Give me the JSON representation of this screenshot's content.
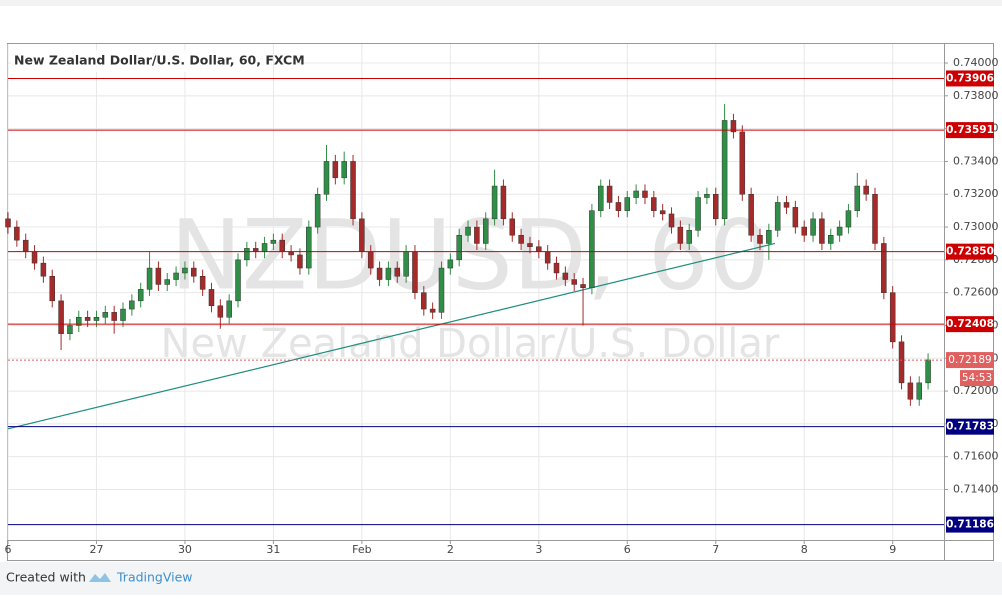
{
  "chart_data": {
    "type": "candlestick",
    "title": "New Zealand Dollar/U.S. Dollar, 60, FXCM",
    "watermark": "NZDUSD, 60",
    "watermark_subtitle": "New Zealand Dollar/U.S. Dollar",
    "up_color": "#2f8f46",
    "down_color": "#a52a2a",
    "open": [
      0.7305,
      0.73,
      0.7292,
      0.7285,
      0.7278,
      0.727,
      0.7255,
      0.7235,
      0.724,
      0.7245,
      0.7243,
      0.7245,
      0.7248,
      0.7243,
      0.725,
      0.7255,
      0.7262,
      0.7275,
      0.7265,
      0.7268,
      0.7272,
      0.7275,
      0.727,
      0.7262,
      0.7252,
      0.7245,
      0.7255,
      0.728,
      0.7287,
      0.7285,
      0.729,
      0.7292,
      0.7285,
      0.7283,
      0.7275,
      0.73,
      0.732,
      0.734,
      0.733,
      0.734,
      0.7305,
      0.7285,
      0.7275,
      0.7268,
      0.7275,
      0.727,
      0.7285,
      0.726,
      0.725,
      0.7248,
      0.7275,
      0.728,
      0.7295,
      0.73,
      0.729,
      0.7305,
      0.7325,
      0.7305,
      0.7295,
      0.729,
      0.7288,
      0.7285,
      0.7278,
      0.7272,
      0.7268,
      0.7265,
      0.7263,
      0.731,
      0.7325,
      0.7315,
      0.731,
      0.7318,
      0.7322,
      0.7318,
      0.731,
      0.7308,
      0.73,
      0.729,
      0.7298,
      0.7318,
      0.732,
      0.7305,
      0.7365,
      0.7358,
      0.732,
      0.7295,
      0.729,
      0.7298,
      0.7315,
      0.7312,
      0.73,
      0.7295,
      0.7305,
      0.729,
      0.7295,
      0.73,
      0.731,
      0.7325,
      0.732,
      0.729,
      0.726,
      0.723,
      0.7205,
      0.7195,
      0.7205
    ],
    "high": [
      0.7309,
      0.7304,
      0.7296,
      0.7289,
      0.7282,
      0.7274,
      0.7259,
      0.7244,
      0.7249,
      0.7249,
      0.7249,
      0.7252,
      0.7252,
      0.7254,
      0.7259,
      0.7266,
      0.7285,
      0.7279,
      0.7272,
      0.7276,
      0.7279,
      0.7279,
      0.7274,
      0.7266,
      0.7256,
      0.7259,
      0.7284,
      0.7291,
      0.7291,
      0.7294,
      0.7296,
      0.7296,
      0.7289,
      0.7287,
      0.7304,
      0.7324,
      0.735,
      0.7344,
      0.7346,
      0.7344,
      0.7309,
      0.7289,
      0.7279,
      0.7279,
      0.7279,
      0.7289,
      0.7289,
      0.7264,
      0.7254,
      0.7279,
      0.7284,
      0.7299,
      0.7304,
      0.7304,
      0.7309,
      0.7335,
      0.7329,
      0.7309,
      0.7299,
      0.7294,
      0.7292,
      0.7289,
      0.7282,
      0.7276,
      0.7272,
      0.7269,
      0.7314,
      0.7329,
      0.7329,
      0.7319,
      0.7322,
      0.7326,
      0.7326,
      0.7322,
      0.7314,
      0.7312,
      0.7304,
      0.7302,
      0.7322,
      0.7324,
      0.7324,
      0.7375,
      0.7369,
      0.7362,
      0.7324,
      0.7299,
      0.7302,
      0.7319,
      0.7319,
      0.7316,
      0.7304,
      0.7309,
      0.7309,
      0.7299,
      0.7304,
      0.7314,
      0.7333,
      0.7329,
      0.7324,
      0.7294,
      0.7264,
      0.7234,
      0.7209,
      0.7209,
      0.7223
    ],
    "low": [
      0.7296,
      0.7288,
      0.7281,
      0.7274,
      0.7266,
      0.7251,
      0.7225,
      0.7231,
      0.7236,
      0.7239,
      0.7239,
      0.7241,
      0.7235,
      0.7239,
      0.7246,
      0.7251,
      0.7258,
      0.7261,
      0.7261,
      0.7264,
      0.7268,
      0.7266,
      0.7258,
      0.7248,
      0.7238,
      0.7241,
      0.7251,
      0.7276,
      0.7281,
      0.7281,
      0.7286,
      0.7281,
      0.7279,
      0.7271,
      0.7271,
      0.7296,
      0.7316,
      0.7326,
      0.7326,
      0.7301,
      0.7281,
      0.7271,
      0.7264,
      0.7264,
      0.7266,
      0.7266,
      0.7256,
      0.7246,
      0.7244,
      0.7244,
      0.7271,
      0.7276,
      0.7291,
      0.7286,
      0.7286,
      0.7301,
      0.7301,
      0.7291,
      0.7286,
      0.7284,
      0.7281,
      0.7274,
      0.7268,
      0.7264,
      0.7261,
      0.724,
      0.7259,
      0.7306,
      0.7311,
      0.7306,
      0.7306,
      0.7314,
      0.7314,
      0.7306,
      0.7304,
      0.7296,
      0.7286,
      0.7286,
      0.7294,
      0.7314,
      0.7301,
      0.7301,
      0.7354,
      0.7316,
      0.7291,
      0.7286,
      0.728,
      0.7294,
      0.7308,
      0.7296,
      0.7291,
      0.7291,
      0.7286,
      0.7286,
      0.7291,
      0.7296,
      0.7306,
      0.7316,
      0.7286,
      0.7256,
      0.7226,
      0.7201,
      0.7191,
      0.7191,
      0.7201
    ],
    "close": [
      0.73,
      0.7292,
      0.7285,
      0.7278,
      0.727,
      0.7255,
      0.7235,
      0.724,
      0.7245,
      0.7243,
      0.7245,
      0.7248,
      0.7243,
      0.725,
      0.7255,
      0.7262,
      0.7275,
      0.7265,
      0.7268,
      0.7272,
      0.7275,
      0.727,
      0.7262,
      0.7252,
      0.7245,
      0.7255,
      0.728,
      0.7287,
      0.7285,
      0.729,
      0.7292,
      0.7285,
      0.7283,
      0.7275,
      0.73,
      0.732,
      0.734,
      0.733,
      0.734,
      0.7305,
      0.7285,
      0.7275,
      0.7268,
      0.7275,
      0.727,
      0.7285,
      0.726,
      0.725,
      0.7248,
      0.7275,
      0.728,
      0.7295,
      0.73,
      0.729,
      0.7305,
      0.7325,
      0.7305,
      0.7295,
      0.729,
      0.7288,
      0.7285,
      0.7278,
      0.7272,
      0.7268,
      0.7265,
      0.7263,
      0.731,
      0.7325,
      0.7315,
      0.731,
      0.7318,
      0.7322,
      0.7318,
      0.731,
      0.7308,
      0.73,
      0.729,
      0.7298,
      0.7318,
      0.732,
      0.7305,
      0.7365,
      0.7358,
      0.732,
      0.7295,
      0.729,
      0.7298,
      0.7315,
      0.7312,
      0.73,
      0.7295,
      0.7305,
      0.729,
      0.7295,
      0.73,
      0.731,
      0.7325,
      0.732,
      0.729,
      0.726,
      0.723,
      0.7205,
      0.7195,
      0.7205,
      0.7219
    ],
    "xlim": [
      0,
      105.8
    ],
    "xticks": [
      {
        "value": 0,
        "label": "6"
      },
      {
        "value": 10,
        "label": "27"
      },
      {
        "value": 20,
        "label": "30"
      },
      {
        "value": 30,
        "label": "31"
      },
      {
        "value": 40,
        "label": "Feb"
      },
      {
        "value": 50,
        "label": "2"
      },
      {
        "value": 60,
        "label": "3"
      },
      {
        "value": 70,
        "label": "6"
      },
      {
        "value": 80,
        "label": "7"
      },
      {
        "value": 90,
        "label": "8"
      },
      {
        "value": 100,
        "label": "9"
      }
    ],
    "ylim": [
      0.71092,
      0.74116
    ],
    "yticks": [
      {
        "value": 0.714,
        "label": "0.71400"
      },
      {
        "value": 0.716,
        "label": "0.71600"
      },
      {
        "value": 0.718,
        "label": "0.71800"
      },
      {
        "value": 0.72,
        "label": "0.72000"
      },
      {
        "value": 0.722,
        "label": "0.72200"
      },
      {
        "value": 0.724,
        "label": "0.72400"
      },
      {
        "value": 0.726,
        "label": "0.72600"
      },
      {
        "value": 0.728,
        "label": "0.72800"
      },
      {
        "value": 0.73,
        "label": "0.73000"
      },
      {
        "value": 0.732,
        "label": "0.73200"
      },
      {
        "value": 0.734,
        "label": "0.73400"
      },
      {
        "value": 0.736,
        "label": "0.73600"
      },
      {
        "value": 0.738,
        "label": "0.73800"
      },
      {
        "value": 0.74,
        "label": "0.74000"
      }
    ],
    "grid": true,
    "levels": [
      {
        "value": 0.73906,
        "color": "#cc0000"
      },
      {
        "value": 0.73591,
        "color": "#cc0000"
      },
      {
        "value": 0.7285,
        "label": "0.72850",
        "color": "#cc0000"
      },
      {
        "value": 0.72408,
        "color": "#cc0000"
      },
      {
        "value": 0.71783,
        "color": "#000080"
      },
      {
        "value": 0.71186,
        "color": "#000080"
      }
    ],
    "current_price": 0.72189,
    "current_color": "#e06060",
    "countdown": "54:53",
    "trendline": {
      "x": [
        0,
        86.7
      ],
      "y": [
        0.7177,
        0.729
      ],
      "color": "#1e8e7e"
    }
  },
  "footer": {
    "created_with": "Created with",
    "brand": "TradingView"
  }
}
